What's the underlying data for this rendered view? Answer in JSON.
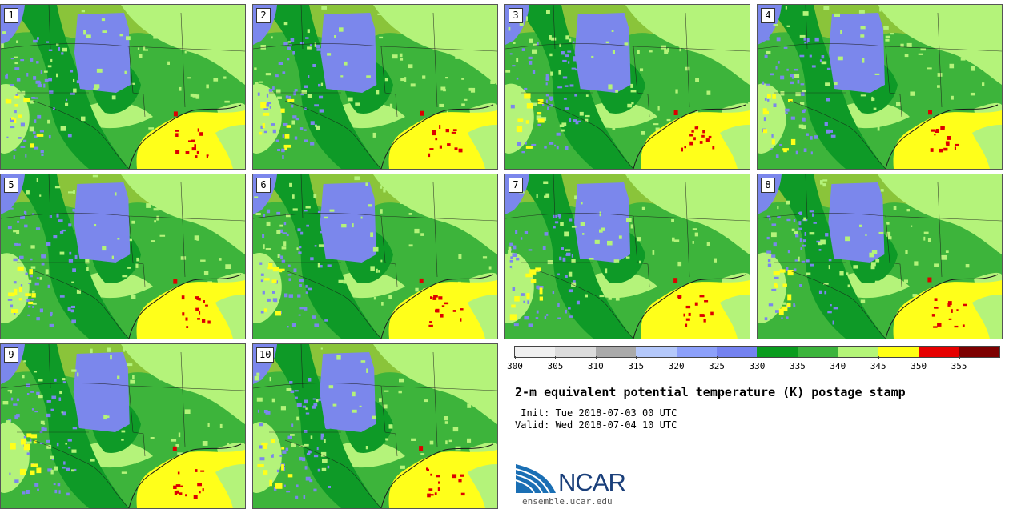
{
  "panels": [
    {
      "number": "1"
    },
    {
      "number": "2"
    },
    {
      "number": "3"
    },
    {
      "number": "4"
    },
    {
      "number": "5"
    },
    {
      "number": "6"
    },
    {
      "number": "7"
    },
    {
      "number": "8"
    },
    {
      "number": "9"
    },
    {
      "number": "10"
    }
  ],
  "colorbar": {
    "colors": [
      "#f0f0f0",
      "#dcdcdc",
      "#aaaaaa",
      "#b4c8fa",
      "#8ca0fa",
      "#7482f0",
      "#0a9c1e",
      "#3cb43c",
      "#b4f578",
      "#ffff14",
      "#e60000",
      "#7d0000"
    ],
    "ticks": [
      "300",
      "305",
      "310",
      "315",
      "320",
      "325",
      "330",
      "335",
      "340",
      "345",
      "350",
      "355"
    ],
    "range": [
      300,
      360
    ]
  },
  "map_colors": {
    "cool": "#7b87ec",
    "dark_green": "#0e9a27",
    "mid_green": "#3db43b",
    "light_green": "#b4f37a",
    "yellow": "#ffff1a",
    "red": "#dd0000",
    "boundary": "#1a1a1a"
  },
  "title": "2-m equivalent potential temperature (K) postage stamp",
  "init": " Init: Tue 2018-07-03 00 UTC",
  "valid": "Valid: Wed 2018-07-04 10 UTC",
  "logo_text": "NCAR",
  "site": "ensemble.ucar.edu"
}
